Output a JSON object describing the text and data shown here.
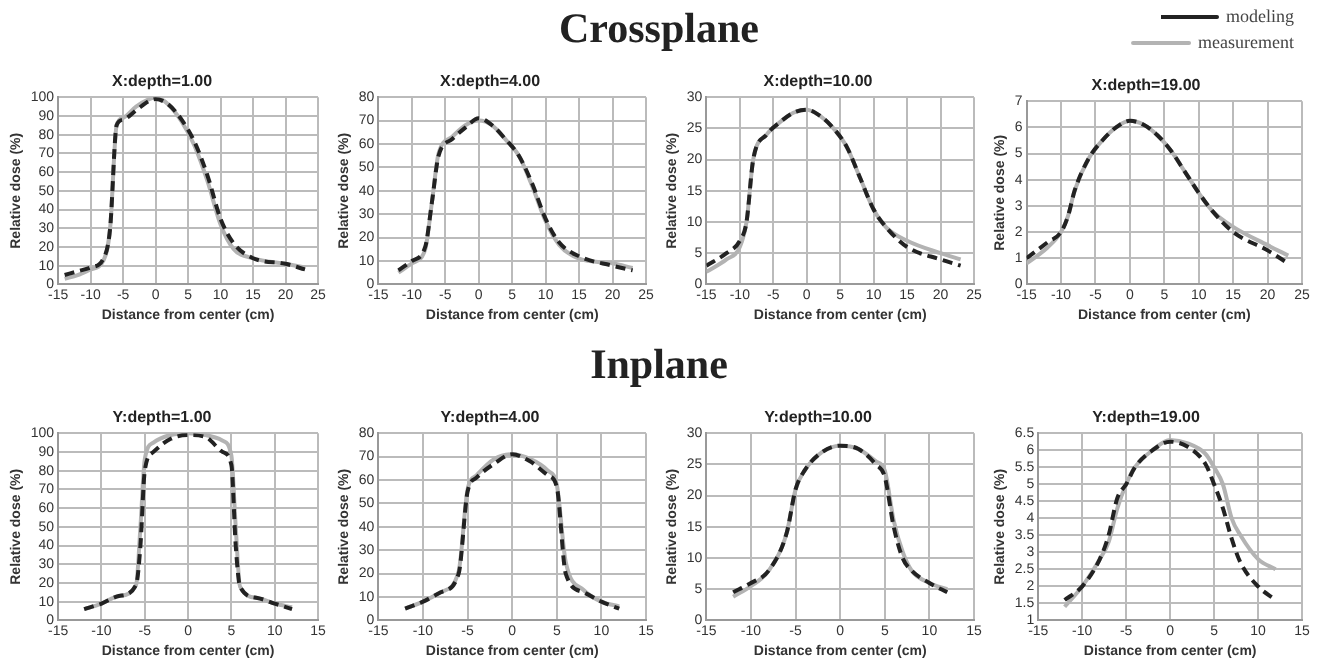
{
  "chart_data": [
    {
      "type": "line",
      "title": "X:depth=1.00",
      "xlabel": "Distance from center (cm)",
      "ylabel": "Relative dose (%)",
      "annotations": [
        "Crossplane"
      ],
      "xlim": [
        -15,
        25
      ],
      "xticks": [
        -15,
        -10,
        -5,
        0,
        5,
        10,
        15,
        20,
        25
      ],
      "ylim": [
        0,
        100
      ],
      "yticks": [
        0,
        10,
        20,
        30,
        40,
        50,
        60,
        70,
        80,
        90,
        100
      ],
      "grid": true,
      "series": [
        {
          "color": "#b3b3b3",
          "line_style": "solid",
          "x": [
            -14,
            -12,
            -10,
            -8,
            -7,
            -6,
            -5,
            -3,
            -1,
            0,
            2,
            4,
            6,
            8,
            10,
            12,
            15,
            20,
            23
          ],
          "values": [
            3,
            5,
            8,
            13,
            30,
            85,
            89,
            95,
            99,
            100,
            96,
            87,
            74,
            55,
            32,
            19,
            14,
            11,
            9
          ]
        },
        {
          "color": "#222222",
          "line_style": "dashed",
          "x": [
            -14,
            -12,
            -10,
            -8,
            -7,
            -6,
            -5,
            -3,
            -1,
            0,
            2,
            4,
            6,
            8,
            10,
            12,
            15,
            20,
            23
          ],
          "values": [
            5,
            7,
            9,
            14,
            30,
            85,
            88,
            93,
            98,
            99,
            96,
            88,
            76,
            58,
            35,
            22,
            14,
            11,
            8
          ]
        }
      ]
    },
    {
      "type": "line",
      "title": "X:depth=4.00",
      "xlabel": "Distance from center (cm)",
      "ylabel": "Relative dose (%)",
      "xlim": [
        -15,
        25
      ],
      "xticks": [
        -15,
        -10,
        -5,
        0,
        5,
        10,
        15,
        20,
        25
      ],
      "ylim": [
        0,
        80
      ],
      "yticks": [
        0,
        10,
        20,
        30,
        40,
        50,
        60,
        70,
        80
      ],
      "grid": true,
      "series": [
        {
          "color": "#b3b3b3",
          "line_style": "solid",
          "x": [
            -12,
            -10,
            -8,
            -7,
            -6,
            -4,
            -2,
            0,
            2,
            4,
            6,
            8,
            10,
            12,
            15,
            20,
            23
          ],
          "values": [
            5,
            9,
            15,
            35,
            56,
            63,
            68,
            70,
            68,
            62,
            55,
            42,
            27,
            17,
            11,
            9,
            7
          ]
        },
        {
          "color": "#222222",
          "line_style": "dashed",
          "x": [
            -12,
            -10,
            -8,
            -7,
            -6,
            -4,
            -2,
            0,
            2,
            4,
            6,
            8,
            10,
            12,
            15,
            20,
            23
          ],
          "values": [
            6,
            10,
            16,
            35,
            55,
            62,
            67,
            71,
            68,
            62,
            55,
            43,
            28,
            18,
            12,
            8,
            6
          ]
        }
      ]
    },
    {
      "type": "line",
      "title": "X:depth=10.00",
      "xlabel": "Distance from center (cm)",
      "ylabel": "Relative dose (%)",
      "xlim": [
        -15,
        25
      ],
      "xticks": [
        -15,
        -10,
        -5,
        0,
        5,
        10,
        15,
        20,
        25
      ],
      "ylim": [
        0,
        30
      ],
      "yticks": [
        0,
        5,
        10,
        15,
        20,
        25,
        30
      ],
      "grid": true,
      "series": [
        {
          "color": "#b3b3b3",
          "line_style": "solid",
          "x": [
            -15,
            -12,
            -10,
            -9,
            -8,
            -6,
            -4,
            -2,
            0,
            2,
            4,
            6,
            8,
            10,
            12,
            15,
            20,
            23
          ],
          "values": [
            2,
            4,
            6,
            10,
            20,
            24,
            26,
            27.5,
            28,
            27,
            25,
            22,
            17,
            12,
            9,
            7,
            5,
            4
          ]
        },
        {
          "color": "#222222",
          "line_style": "dashed",
          "x": [
            -15,
            -12,
            -10,
            -9,
            -8,
            -6,
            -4,
            -2,
            0,
            2,
            4,
            6,
            8,
            10,
            12,
            15,
            20,
            23
          ],
          "values": [
            3,
            5,
            7,
            10,
            20,
            24,
            26,
            27.5,
            28,
            27,
            25,
            22,
            17,
            12,
            9,
            6,
            4,
            3
          ]
        }
      ]
    },
    {
      "type": "line",
      "title": "X:depth=19.00",
      "xlabel": "Distance from center (cm)",
      "ylabel": "Relative dose (%)",
      "legend": "top right",
      "xlim": [
        -15,
        25
      ],
      "xticks": [
        -15,
        -10,
        -5,
        0,
        5,
        10,
        15,
        20,
        25
      ],
      "ylim": [
        0,
        7
      ],
      "yticks": [
        0,
        1,
        2,
        3,
        4,
        5,
        6,
        7
      ],
      "grid": true,
      "series": [
        {
          "name": "measurement",
          "color": "#b3b3b3",
          "line_style": "solid",
          "x": [
            -15,
            -12,
            -10,
            -9,
            -8,
            -6,
            -4,
            -2,
            0,
            2,
            4,
            6,
            8,
            10,
            12,
            15,
            20,
            23
          ],
          "values": [
            0.8,
            1.4,
            2,
            2.6,
            3.6,
            4.8,
            5.5,
            6,
            6.25,
            6.1,
            5.7,
            5.1,
            4.3,
            3.5,
            2.8,
            2.2,
            1.5,
            1.1
          ]
        },
        {
          "name": "modeling",
          "color": "#222222",
          "line_style": "dashed",
          "x": [
            -15,
            -12,
            -10,
            -9,
            -8,
            -6,
            -4,
            -2,
            0,
            2,
            4,
            6,
            8,
            10,
            12,
            15,
            20,
            23
          ],
          "values": [
            1,
            1.6,
            2,
            2.6,
            3.6,
            4.8,
            5.5,
            6,
            6.25,
            6.1,
            5.7,
            5.1,
            4.3,
            3.5,
            2.8,
            2,
            1.3,
            0.8
          ]
        }
      ]
    },
    {
      "type": "line",
      "title": "Y:depth=1.00",
      "xlabel": "Distance from center (cm)",
      "ylabel": "Relative dose (%)",
      "annotations": [
        "Inplane"
      ],
      "xlim": [
        -15,
        15
      ],
      "xticks": [
        -15,
        -10,
        -5,
        0,
        5,
        10,
        15
      ],
      "ylim": [
        0,
        100
      ],
      "yticks": [
        0,
        10,
        20,
        30,
        40,
        50,
        60,
        70,
        80,
        90,
        100
      ],
      "grid": true,
      "series": [
        {
          "color": "#b3b3b3",
          "line_style": "solid",
          "x": [
            -12,
            -10,
            -8,
            -6,
            -5.5,
            -5,
            -4,
            -2,
            0,
            2,
            4,
            5,
            5.5,
            6,
            8,
            10,
            12
          ],
          "values": [
            6,
            9,
            13,
            19,
            50,
            86,
            95,
            99,
            100,
            99,
            96,
            88,
            50,
            18,
            12,
            9,
            7
          ]
        },
        {
          "color": "#222222",
          "line_style": "dashed",
          "x": [
            -12,
            -10,
            -8,
            -6,
            -5.5,
            -5,
            -4,
            -2,
            0,
            2,
            4,
            5,
            5.5,
            6,
            8,
            10,
            12
          ],
          "values": [
            6,
            9,
            13,
            19,
            40,
            80,
            90,
            97,
            99,
            98,
            90,
            83,
            40,
            18,
            12,
            9,
            6
          ]
        }
      ]
    },
    {
      "type": "line",
      "title": "Y:depth=4.00",
      "xlabel": "Distance from center (cm)",
      "ylabel": "Relative dose (%)",
      "xlim": [
        -15,
        15
      ],
      "xticks": [
        -15,
        -10,
        -5,
        0,
        5,
        10,
        15
      ],
      "ylim": [
        0,
        80
      ],
      "yticks": [
        0,
        10,
        20,
        30,
        40,
        50,
        60,
        70,
        80
      ],
      "grid": true,
      "series": [
        {
          "color": "#b3b3b3",
          "line_style": "solid",
          "x": [
            -12,
            -10,
            -8,
            -6,
            -5,
            -4,
            -2,
            0,
            2,
            4,
            5,
            6,
            8,
            10,
            12
          ],
          "values": [
            5,
            8,
            12,
            21,
            56,
            62,
            69,
            71,
            69,
            64,
            58,
            25,
            13,
            8,
            6
          ]
        },
        {
          "color": "#222222",
          "line_style": "dashed",
          "x": [
            -12,
            -10,
            -8,
            -6,
            -5,
            -4,
            -2,
            0,
            2,
            4,
            5,
            6,
            8,
            10,
            12
          ],
          "values": [
            5,
            8,
            12,
            20,
            55,
            61,
            67,
            71,
            68,
            62,
            57,
            20,
            12,
            8,
            5
          ]
        }
      ]
    },
    {
      "type": "line",
      "title": "Y:depth=10.00",
      "xlabel": "Distance from center (cm)",
      "ylabel": "Relative dose (%)",
      "xlim": [
        -15,
        15
      ],
      "xticks": [
        -15,
        -10,
        -5,
        0,
        5,
        10,
        15
      ],
      "ylim": [
        0,
        30
      ],
      "yticks": [
        0,
        5,
        10,
        15,
        20,
        25,
        30
      ],
      "grid": true,
      "series": [
        {
          "color": "#b3b3b3",
          "line_style": "solid",
          "x": [
            -12,
            -10,
            -8,
            -6,
            -5,
            -4,
            -2,
            0,
            2,
            4,
            5,
            6,
            7,
            8,
            10,
            12
          ],
          "values": [
            3.8,
            5.5,
            8,
            14,
            21,
            24,
            27,
            28,
            27.5,
            25.5,
            24,
            16,
            11,
            8,
            6,
            5
          ]
        },
        {
          "color": "#222222",
          "line_style": "dashed",
          "x": [
            -12,
            -10,
            -8,
            -6,
            -5,
            -4,
            -2,
            0,
            2,
            4,
            5,
            6,
            7,
            8,
            10,
            12
          ],
          "values": [
            4.5,
            6,
            8,
            14,
            21,
            24,
            27,
            28,
            27.5,
            25,
            23,
            15,
            10,
            8,
            6,
            4.5
          ]
        }
      ]
    },
    {
      "type": "line",
      "title": "Y:depth=19.00",
      "xlabel": "Distance from center (cm)",
      "ylabel": "Relative dose (%)",
      "xlim": [
        -15,
        15
      ],
      "xticks": [
        -15,
        -10,
        -5,
        0,
        5,
        10,
        15
      ],
      "ylim": [
        1,
        6.5
      ],
      "yticks": [
        1,
        1.5,
        2,
        2.5,
        3,
        3.5,
        4,
        4.5,
        5,
        5.5,
        6,
        6.5
      ],
      "grid": true,
      "series": [
        {
          "color": "#b3b3b3",
          "line_style": "solid",
          "x": [
            -12,
            -10,
            -8,
            -7,
            -6,
            -5,
            -4,
            -2,
            0,
            2,
            4,
            5,
            6,
            7,
            8,
            10,
            12
          ],
          "values": [
            1.4,
            2,
            2.8,
            3.3,
            4.3,
            5,
            5.5,
            6,
            6.3,
            6.2,
            5.9,
            5.5,
            5,
            4,
            3.5,
            2.8,
            2.5
          ]
        },
        {
          "color": "#222222",
          "line_style": "dashed",
          "x": [
            -12,
            -10,
            -8,
            -7,
            -6,
            -5,
            -4,
            -2,
            0,
            2,
            4,
            5,
            6,
            7,
            8,
            10,
            12
          ],
          "values": [
            1.6,
            2,
            2.8,
            3.5,
            4.6,
            5,
            5.5,
            6,
            6.25,
            6.1,
            5.6,
            5,
            4.3,
            3.4,
            2.7,
            2,
            1.6
          ]
        }
      ]
    }
  ]
}
